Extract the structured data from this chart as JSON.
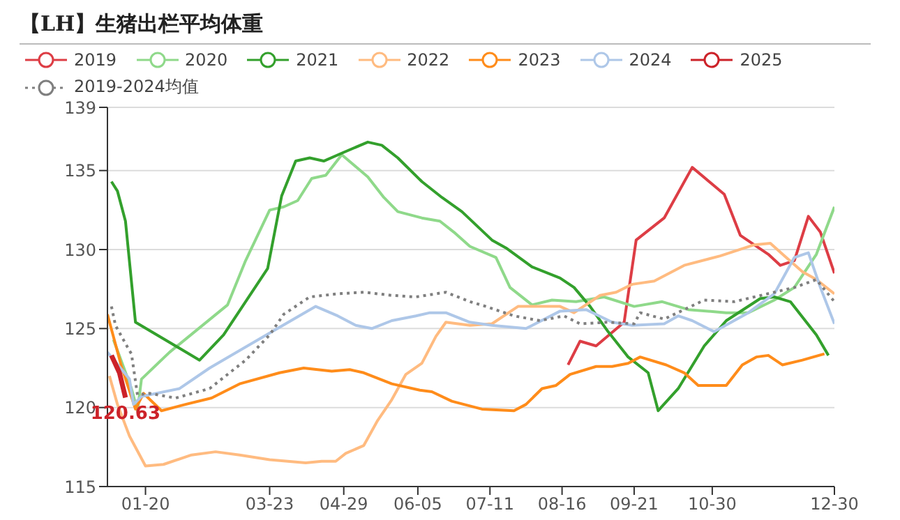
{
  "chart_data": {
    "type": "line",
    "title": "【LH】生猪出栏平均体重",
    "legend": "top left",
    "grid": "y",
    "xlim": [
      "--01-01",
      "--12-30"
    ],
    "xticks": [
      {
        "value": "--01-20",
        "label": "01-20"
      },
      {
        "value": "--03-23",
        "label": "03-23"
      },
      {
        "value": "--04-29",
        "label": "04-29"
      },
      {
        "value": "--06-05",
        "label": "06-05"
      },
      {
        "value": "--07-11",
        "label": "07-11"
      },
      {
        "value": "--08-16",
        "label": "08-16"
      },
      {
        "value": "--09-21",
        "label": "09-21"
      },
      {
        "value": "--10-30",
        "label": "10-30"
      },
      {
        "value": "--12-30",
        "label": "12-30"
      }
    ],
    "ylim": [
      115,
      139
    ],
    "yticks": [
      115,
      120,
      125,
      130,
      135,
      139
    ],
    "series": [
      {
        "name": "2019",
        "color": "#dd3d45",
        "x": [
          "--08-19",
          "--08-25",
          "--09-02",
          "--09-16",
          "--09-22",
          "--10-06",
          "--10-20",
          "--11-05",
          "--11-13",
          "--11-27",
          "--12-03",
          "--12-10",
          "--12-17",
          "--12-23",
          "--12-30"
        ],
        "values": [
          122.7,
          124.2,
          123.9,
          125.4,
          130.6,
          132.0,
          135.2,
          133.5,
          130.9,
          129.7,
          129.0,
          129.3,
          132.1,
          131.1,
          128.5
        ]
      },
      {
        "name": "2020",
        "color": "#8fd98a",
        "x": [
          "--01-04",
          "--01-13",
          "--01-16",
          "--01-18",
          "--02-01",
          "--03-02",
          "--03-11",
          "--03-23",
          "--03-30",
          "--04-06",
          "--04-13",
          "--04-20",
          "--04-28",
          "--05-11",
          "--05-19",
          "--05-26",
          "--06-07",
          "--06-16",
          "--06-23",
          "--07-01",
          "--07-14",
          "--07-21",
          "--08-01",
          "--08-11",
          "--08-23",
          "--09-06",
          "--09-21",
          "--10-05",
          "--10-18",
          "--11-06",
          "--11-17",
          "--11-30",
          "--12-10",
          "--12-21",
          "--12-30"
        ],
        "values": [
          124.3,
          121.2,
          119.8,
          121.8,
          123.5,
          126.5,
          129.3,
          132.5,
          132.7,
          133.1,
          134.5,
          134.7,
          136.0,
          134.6,
          133.3,
          132.4,
          132.0,
          131.8,
          131.1,
          130.2,
          129.5,
          127.6,
          126.5,
          126.8,
          126.7,
          127.0,
          126.4,
          126.7,
          126.2,
          126.0,
          126.0,
          126.8,
          127.6,
          129.7,
          132.7
        ]
      },
      {
        "name": "2021",
        "color": "#33a02c",
        "x": [
          "--01-03",
          "--01-06",
          "--01-10",
          "--01-15",
          "--02-16",
          "--02-28",
          "--03-22",
          "--03-29",
          "--04-05",
          "--04-12",
          "--04-19",
          "--04-28",
          "--05-11",
          "--05-18",
          "--05-26",
          "--06-07",
          "--06-17",
          "--06-27",
          "--07-12",
          "--07-19",
          "--08-01",
          "--08-15",
          "--08-22",
          "--08-30",
          "--09-08",
          "--09-18",
          "--09-28",
          "--10-03",
          "--10-13",
          "--10-26",
          "--11-06",
          "--11-23",
          "--11-30",
          "--12-08",
          "--12-21",
          "--12-27"
        ],
        "values": [
          134.3,
          133.7,
          131.8,
          125.4,
          123.0,
          124.6,
          128.8,
          133.4,
          135.6,
          135.8,
          135.6,
          136.1,
          136.8,
          136.6,
          135.8,
          134.3,
          133.3,
          132.4,
          130.6,
          130.1,
          128.9,
          128.2,
          127.6,
          126.4,
          124.8,
          123.2,
          122.2,
          119.8,
          121.2,
          123.9,
          125.5,
          126.9,
          127.0,
          126.7,
          124.6,
          123.3
        ]
      },
      {
        "name": "2022",
        "color": "#ffbb80",
        "x": [
          "--01-02",
          "--01-06",
          "--01-12",
          "--01-20",
          "--01-29",
          "--02-12",
          "--02-24",
          "--03-08",
          "--03-23",
          "--04-10",
          "--04-18",
          "--04-25",
          "--04-30",
          "--05-09",
          "--05-16",
          "--05-23",
          "--05-30",
          "--06-07",
          "--06-14",
          "--06-19",
          "--07-01",
          "--07-12",
          "--07-25",
          "--08-15",
          "--08-22",
          "--09-04",
          "--09-12",
          "--09-20",
          "--10-01",
          "--10-16",
          "--11-03",
          "--11-20",
          "--11-28",
          "--12-05",
          "--12-14",
          "--12-21",
          "--12-30"
        ],
        "values": [
          122.0,
          120.2,
          118.2,
          116.3,
          116.4,
          117.0,
          117.2,
          117.0,
          116.7,
          116.5,
          116.6,
          116.6,
          117.1,
          117.6,
          119.2,
          120.5,
          122.1,
          122.8,
          124.5,
          125.4,
          125.2,
          125.3,
          126.4,
          126.4,
          126.0,
          127.1,
          127.3,
          127.8,
          128.0,
          129.0,
          129.6,
          130.3,
          130.4,
          129.6,
          128.6,
          128.1,
          127.2
        ]
      },
      {
        "name": "2023",
        "color": "#ff8c1a",
        "x": [
          "--01-01",
          "--01-08",
          "--01-15",
          "--01-19",
          "--01-28",
          "--02-09",
          "--02-22",
          "--03-08",
          "--03-28",
          "--04-09",
          "--04-23",
          "--05-02",
          "--05-09",
          "--05-23",
          "--06-06",
          "--06-12",
          "--06-22",
          "--07-07",
          "--07-23",
          "--07-29",
          "--08-06",
          "--08-13",
          "--08-20",
          "--09-02",
          "--09-10",
          "--09-18",
          "--09-24",
          "--10-07",
          "--10-16",
          "--10-23",
          "--11-06",
          "--11-14",
          "--11-21",
          "--11-27",
          "--12-04",
          "--12-14",
          "--12-25"
        ],
        "values": [
          125.9,
          122.6,
          119.9,
          120.9,
          119.8,
          120.2,
          120.6,
          121.5,
          122.2,
          122.5,
          122.3,
          122.4,
          122.2,
          121.5,
          121.1,
          121.0,
          120.4,
          119.9,
          119.8,
          120.2,
          121.2,
          121.4,
          122.1,
          122.6,
          122.6,
          122.8,
          123.2,
          122.7,
          122.2,
          121.4,
          121.4,
          122.7,
          123.2,
          123.3,
          122.7,
          123.0,
          123.4
        ]
      },
      {
        "name": "2024",
        "color": "#aec7e8",
        "x": [
          "--01-01",
          "--01-05",
          "--01-12",
          "--01-14",
          "--01-18",
          "--02-06",
          "--02-21",
          "--03-20",
          "--04-15",
          "--04-26",
          "--05-05",
          "--05-13",
          "--05-23",
          "--06-04",
          "--06-11",
          "--06-19",
          "--07-01",
          "--07-12",
          "--07-29",
          "--08-15",
          "--08-28",
          "--09-10",
          "--09-20",
          "--10-06",
          "--10-13",
          "--10-20",
          "--10-31",
          "--11-17",
          "--11-30",
          "--12-10",
          "--12-17",
          "--12-23",
          "--12-30"
        ],
        "values": [
          123.5,
          122.9,
          121.8,
          120.2,
          120.7,
          121.2,
          122.5,
          124.5,
          126.4,
          125.8,
          125.2,
          125.0,
          125.5,
          125.8,
          126.0,
          126.0,
          125.4,
          125.2,
          125.0,
          126.1,
          126.2,
          125.4,
          125.2,
          125.3,
          125.8,
          125.5,
          124.8,
          126.0,
          127.2,
          129.5,
          129.8,
          127.6,
          125.3
        ]
      },
      {
        "name": "2025",
        "color": "#cc2229",
        "x": [
          "--01-03",
          "--01-07",
          "--01-10"
        ],
        "values": [
          123.3,
          122.2,
          120.63
        ],
        "value_labels": [
          null,
          null,
          "120.63"
        ]
      },
      {
        "name": "2019-2024均值",
        "color": "#7f7f7f",
        "line_style": "dotted",
        "x": [
          "--01-03",
          "--01-05",
          "--01-12",
          "--01-13",
          "--01-16",
          "--01-22",
          "--02-04",
          "--02-21",
          "--03-11",
          "--03-23",
          "--03-30",
          "--04-12",
          "--04-26",
          "--05-09",
          "--05-23",
          "--06-04",
          "--06-19",
          "--07-01",
          "--07-09",
          "--07-23",
          "--08-05",
          "--08-17",
          "--08-25",
          "--09-08",
          "--09-21",
          "--09-24",
          "--10-06",
          "--10-26",
          "--11-10",
          "--11-30",
          "--12-10",
          "--12-21",
          "--12-30"
        ],
        "values": [
          126.4,
          125.2,
          123.6,
          123.4,
          120.8,
          120.9,
          120.6,
          121.2,
          123.0,
          124.6,
          125.9,
          127.0,
          127.2,
          127.3,
          127.1,
          127.0,
          127.3,
          126.7,
          126.4,
          125.8,
          125.5,
          125.8,
          125.3,
          125.4,
          125.3,
          126.0,
          125.6,
          126.8,
          126.7,
          127.3,
          127.6,
          128.1,
          126.7
        ]
      }
    ]
  }
}
